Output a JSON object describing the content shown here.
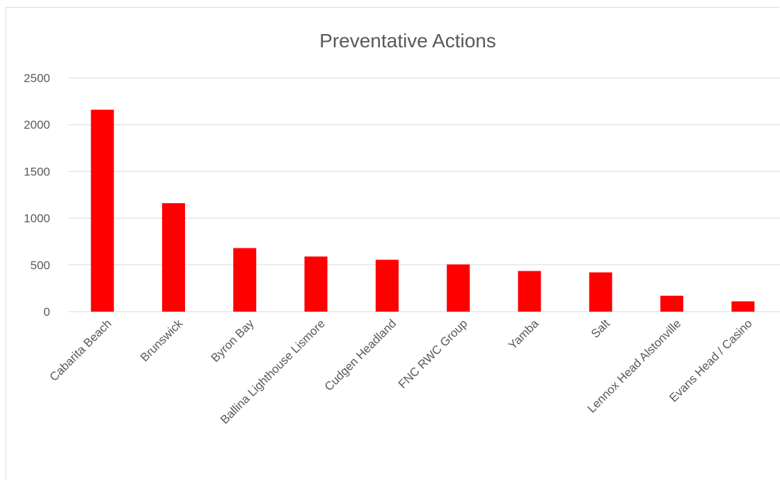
{
  "chart_data": {
    "type": "bar",
    "title": "Preventative Actions",
    "categories": [
      "Cabarita Beach",
      "Brunswick",
      "Byron Bay",
      "Ballina Lighthouse Lismore",
      "Cudgen Headland",
      "FNC RWC Group",
      "Yamba",
      "Salt",
      "Lennox Head Alstonville",
      "Evans Head / Casino"
    ],
    "values": [
      2160,
      1160,
      680,
      590,
      555,
      505,
      435,
      420,
      170,
      110
    ],
    "y_ticks": [
      "0",
      "500",
      "1000",
      "1500",
      "2000",
      "2500"
    ],
    "ylim": [
      0,
      2500
    ],
    "grid": true,
    "legend": "none",
    "bar_color": "#ff0000"
  }
}
